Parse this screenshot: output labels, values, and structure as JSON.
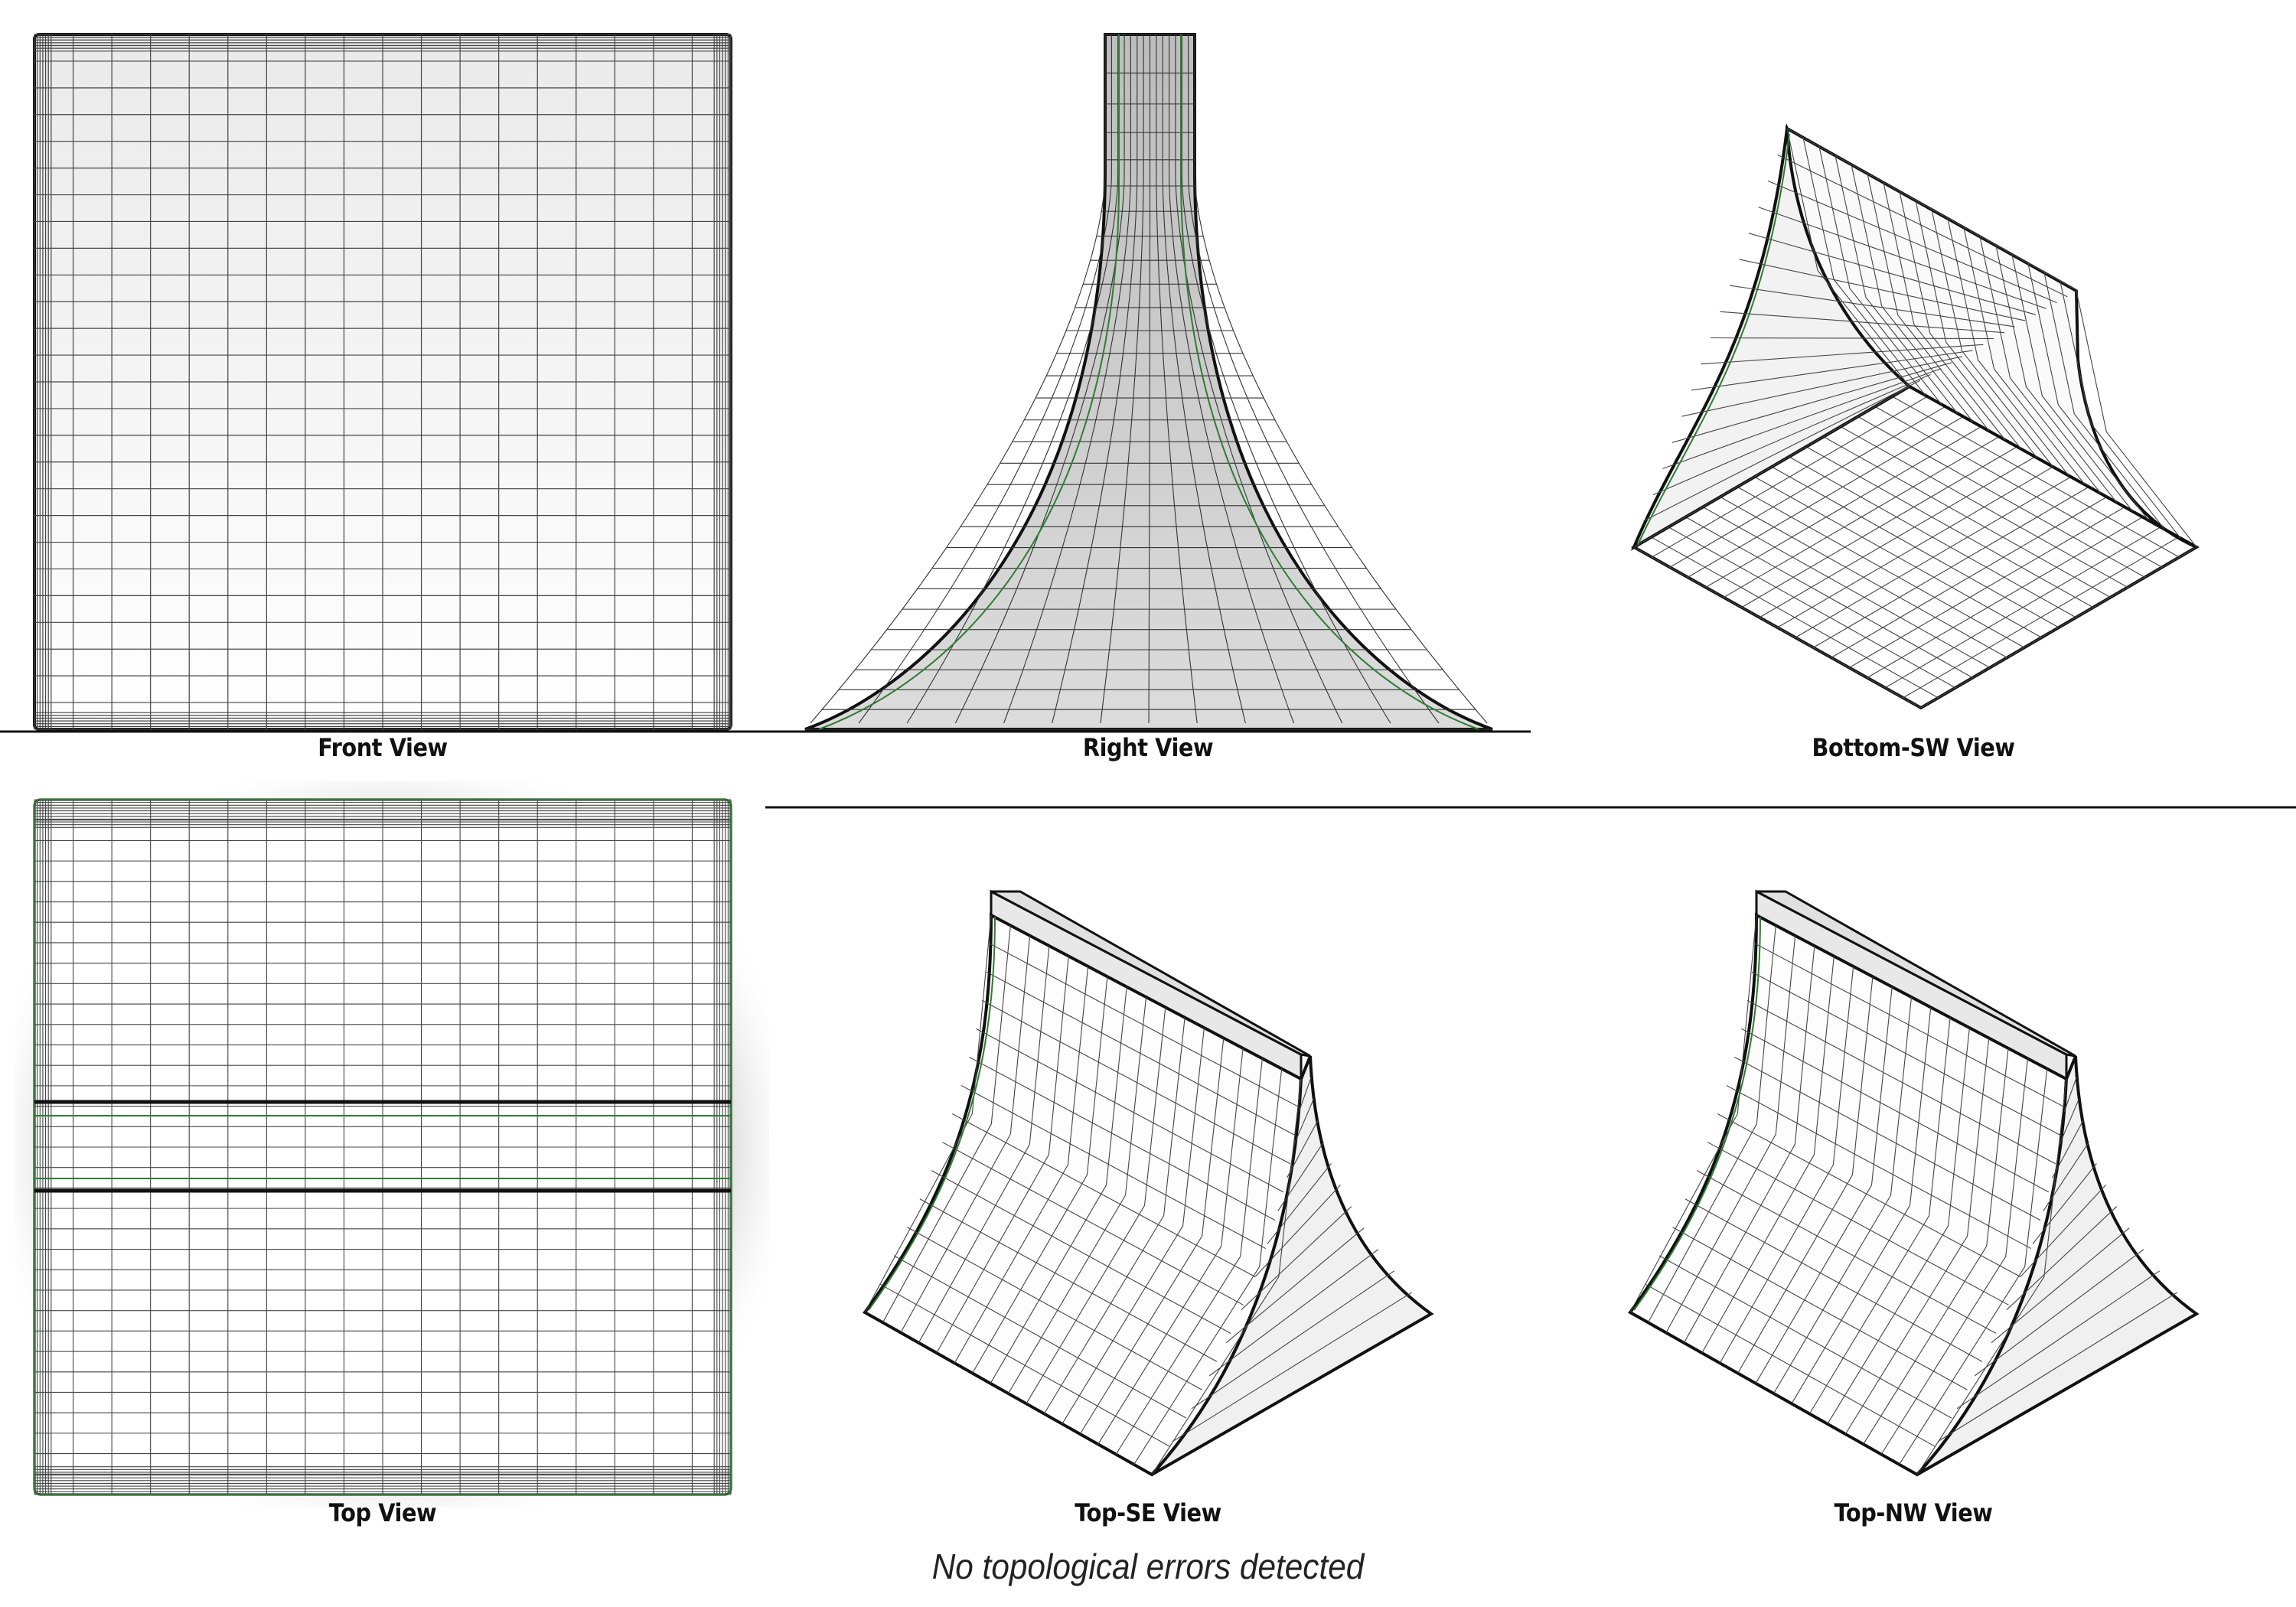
{
  "views": {
    "front": "Front View",
    "right": "Right View",
    "bottom_sw": "Bottom-SW View",
    "top": "Top View",
    "top_se": "Top-SE View",
    "top_nw": "Top-NW View"
  },
  "status_message": "No topological errors detected",
  "colors": {
    "mesh_line": "#333333",
    "edge_dark": "#111111",
    "seam_green": "#2e7d32",
    "surface_light": "#f7f7f7",
    "surface_gray": "#d9d9d9"
  }
}
